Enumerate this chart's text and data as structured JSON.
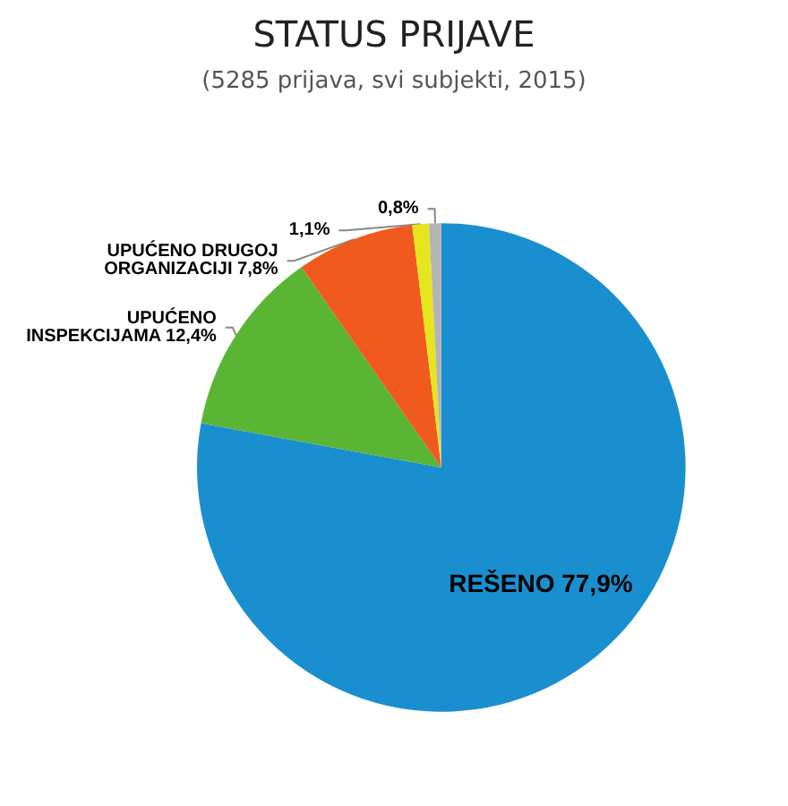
{
  "chart_data": {
    "type": "pie",
    "title": "STATUS PRIJAVE",
    "subtitle": "(5285 prijava, svi subjekti, 2015)",
    "categories": [
      "REŠENO",
      "UPUĆENO INSPEKCIJAMA",
      "UPUĆENO DRUGOJ ORGANIZACIJI",
      null,
      null
    ],
    "values": [
      77.9,
      12.4,
      7.8,
      1.1,
      0.8
    ],
    "value_labels": [
      "77,9%",
      "12,4%",
      "7,8%",
      "1,1%",
      "0,8%"
    ],
    "colors": [
      "#1a8fd0",
      "#5ab535",
      "#f05a1e",
      "#e6e61e",
      "#b4b4b4"
    ]
  }
}
